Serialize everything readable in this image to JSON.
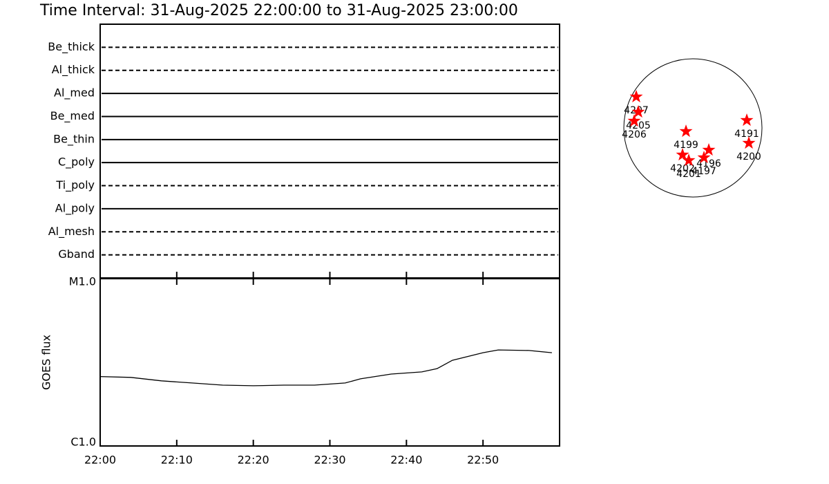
{
  "chart_data": [
    {
      "type": "timeline",
      "title": "Time Interval: 31-Aug-2025 22:00:00 to 31-Aug-2025 23:00:00",
      "categories": [
        "Be_thick",
        "Al_thick",
        "Al_med",
        "Be_med",
        "Be_thin",
        "C_poly",
        "Ti_poly",
        "Al_poly",
        "Al_mesh",
        "Gband"
      ],
      "line_styles": [
        "dashed",
        "dashed",
        "solid",
        "solid",
        "solid",
        "solid",
        "dashed",
        "solid",
        "dashed",
        "dashed"
      ],
      "color": "#000000"
    },
    {
      "type": "line",
      "ylabel": "GOES flux",
      "log_scale": true,
      "color": "#000000",
      "x": [
        "22:00",
        "22:04",
        "22:08",
        "22:12",
        "22:16",
        "22:20",
        "22:24",
        "22:28",
        "22:32",
        "22:34",
        "22:38",
        "22:42",
        "22:44",
        "22:46",
        "22:50",
        "22:52",
        "22:56",
        "22:59"
      ],
      "values": [
        2.6e-06,
        2.57e-06,
        2.45e-06,
        2.38e-06,
        2.31e-06,
        2.29e-06,
        2.31e-06,
        2.31e-06,
        2.38e-06,
        2.52e-06,
        2.69e-06,
        2.77e-06,
        2.9e-06,
        3.25e-06,
        3.61e-06,
        3.75e-06,
        3.72e-06,
        3.61e-06
      ],
      "xlim": [
        "22:00",
        "23:00"
      ],
      "xticks": [
        "22:00",
        "22:10",
        "22:20",
        "22:30",
        "22:40",
        "22:50"
      ],
      "ylim": [
        1e-06,
        1e-05
      ],
      "yticks": [
        {
          "value": 1e-06,
          "label": "C1.0"
        },
        {
          "value": 1e-05,
          "label": "M1.0"
        }
      ]
    },
    {
      "type": "scatter",
      "color": "#ff0000",
      "xlim": [
        -1,
        1
      ],
      "ylim": [
        -1,
        1
      ],
      "labels": [
        "4207",
        "4205",
        "4206",
        "4199",
        "4191",
        "4200",
        "4196",
        "4197",
        "4202",
        "4201"
      ],
      "x": [
        -0.82,
        -0.79,
        -0.85,
        -0.1,
        0.78,
        0.81,
        0.23,
        0.16,
        -0.15,
        -0.06
      ],
      "y": [
        0.45,
        0.23,
        0.1,
        -0.05,
        0.11,
        -0.22,
        -0.32,
        -0.43,
        -0.39,
        -0.47
      ]
    }
  ]
}
